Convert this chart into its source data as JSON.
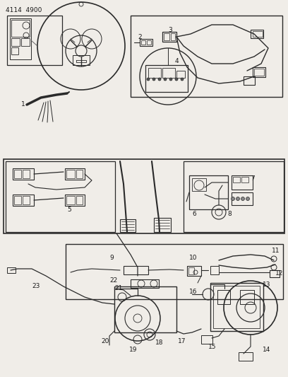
{
  "header_text": "4114  4900",
  "background_color": "#f0ede8",
  "line_color": "#2a2a2a",
  "text_color": "#1a1a1a",
  "fig_width": 4.08,
  "fig_height": 5.33,
  "dpi": 100
}
